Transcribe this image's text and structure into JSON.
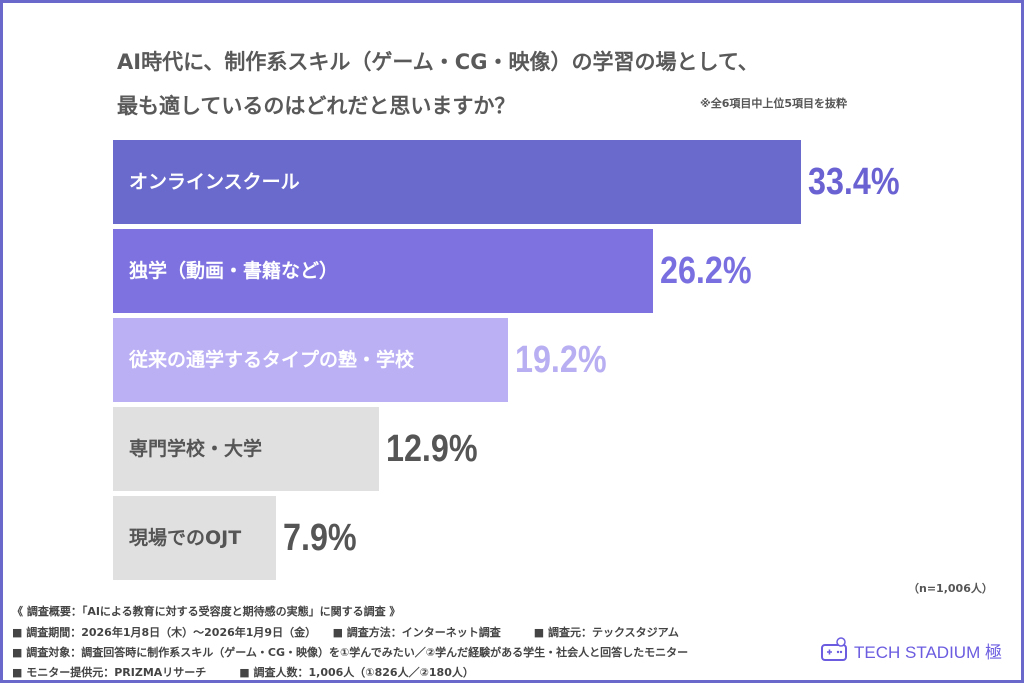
{
  "title_line1": "AI時代に、制作系スキル（ゲーム・CG・映像）の学習の場として、",
  "title_line2": "最も適しているのはどれだと思いますか？",
  "note": "※全6項目中上位5項目を抜粋",
  "chart_data": {
    "type": "bar",
    "orientation": "horizontal",
    "categories": [
      "オンラインスクール",
      "独学（動画・書籍など）",
      "従来の通学するタイプの塾・学校",
      "専門学校・大学",
      "現場でのOJT"
    ],
    "values": [
      33.4,
      26.2,
      19.2,
      12.9,
      7.9
    ],
    "value_labels": [
      "33.4%",
      "26.2%",
      "19.2%",
      "12.9%",
      "7.9%"
    ],
    "bar_colors": [
      "#6a6acc",
      "#7d72e0",
      "#bcb0f5",
      "#e0e0e0",
      "#e0e0e0"
    ],
    "label_colors": [
      "#ffffff",
      "#ffffff",
      "#ffffff",
      "#555555",
      "#555555"
    ],
    "value_colors": [
      "#6a62d2",
      "#7a6fe0",
      "#b8aef2",
      "#555555",
      "#555555"
    ],
    "unit": "%"
  },
  "sample_size": "（n=1,006人）",
  "footer": [
    "《 調査概要：「AIによる教育に対する受容度と期待感の実態」に関する調査 》",
    "■ 調査期間：2026年1月8日（木）～2026年1月9日（金）　　■ 調査方法：インターネット調査　　　■ 調査元：テックスタジアム",
    "■ 調査対象：調査回答時に制作系スキル（ゲーム・CG・映像）を①学んでみたい／②学んだ経験がある学生・社会人と回答したモニター",
    "■ モニター提供元：PRIZMAリサーチ　　　■ 調査人数：1,006人（①826人／②180人）"
  ],
  "brand": "TECH STADIUM 極",
  "brand_icon": "game-controller-icon",
  "colors": {
    "frame": "#6b68cc",
    "brand": "#6b5ce0"
  }
}
